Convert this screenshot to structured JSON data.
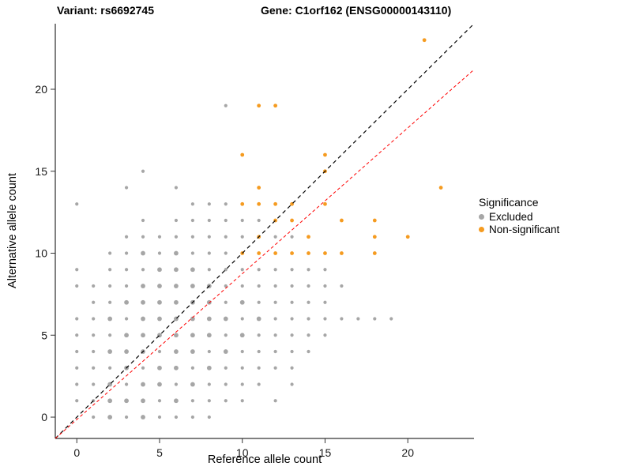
{
  "chart_data": {
    "type": "scatter",
    "title_variant": "Variant: rs6692745",
    "title_gene": "Gene: C1orf162 (ENSG00000143110)",
    "xlabel": "Reference allele count",
    "ylabel": "Alternative allele count",
    "x_ticks": [
      0,
      5,
      10,
      15,
      20
    ],
    "y_ticks": [
      0,
      5,
      10,
      15,
      20
    ],
    "xlim": [
      -1.3,
      24
    ],
    "ylim": [
      -1.3,
      24
    ],
    "grid": false,
    "legend": {
      "title": "Significance",
      "position": "right",
      "items": [
        {
          "label": "Excluded",
          "color": "#A6A6A6"
        },
        {
          "label": "Non-significant",
          "color": "#F59B20"
        }
      ]
    },
    "lines": [
      {
        "name": "identity-line",
        "color": "#000000",
        "dash": "5 4",
        "width": 1.2,
        "from": [
          -1.3,
          -1.3
        ],
        "to": [
          24,
          24
        ]
      },
      {
        "name": "ratio-line",
        "color": "#FF0000",
        "dash": "4 3",
        "width": 1,
        "from": [
          -1.3,
          -1.3
        ],
        "to": [
          24,
          21.2
        ]
      }
    ],
    "series": [
      {
        "name": "Excluded",
        "color": "#A6A6A6",
        "radius": 2.1,
        "points": [
          [
            1,
            0
          ],
          [
            2,
            0,
            2.9
          ],
          [
            3,
            0
          ],
          [
            4,
            0,
            2.9
          ],
          [
            5,
            0
          ],
          [
            6,
            0
          ],
          [
            7,
            0
          ],
          [
            8,
            0
          ],
          [
            0,
            1
          ],
          [
            1,
            1
          ],
          [
            2,
            1,
            2.9
          ],
          [
            3,
            1,
            2.9
          ],
          [
            4,
            1,
            2.9
          ],
          [
            5,
            1
          ],
          [
            6,
            1,
            2.9
          ],
          [
            7,
            1
          ],
          [
            8,
            1
          ],
          [
            9,
            1
          ],
          [
            10,
            1
          ],
          [
            12,
            1
          ],
          [
            0,
            2
          ],
          [
            1,
            2
          ],
          [
            2,
            2,
            2.9
          ],
          [
            3,
            2
          ],
          [
            4,
            2,
            2.9
          ],
          [
            5,
            2,
            2.9
          ],
          [
            6,
            2
          ],
          [
            7,
            2,
            2.9
          ],
          [
            8,
            2
          ],
          [
            9,
            2
          ],
          [
            10,
            2
          ],
          [
            11,
            2
          ],
          [
            13,
            2
          ],
          [
            0,
            3
          ],
          [
            1,
            3
          ],
          [
            2,
            3
          ],
          [
            3,
            3,
            2.9
          ],
          [
            4,
            3
          ],
          [
            5,
            3,
            2.9
          ],
          [
            6,
            3,
            2.9
          ],
          [
            7,
            3
          ],
          [
            8,
            3,
            2.9
          ],
          [
            9,
            3
          ],
          [
            10,
            3
          ],
          [
            11,
            3
          ],
          [
            12,
            3
          ],
          [
            13,
            3
          ],
          [
            0,
            4
          ],
          [
            1,
            4
          ],
          [
            2,
            4,
            2.9
          ],
          [
            3,
            4,
            2.9
          ],
          [
            4,
            4,
            2.9
          ],
          [
            5,
            4
          ],
          [
            6,
            4,
            2.9
          ],
          [
            7,
            4,
            2.9
          ],
          [
            8,
            4
          ],
          [
            9,
            4,
            2.9
          ],
          [
            10,
            4
          ],
          [
            11,
            4
          ],
          [
            12,
            4
          ],
          [
            13,
            4
          ],
          [
            14,
            4
          ],
          [
            0,
            5
          ],
          [
            1,
            5
          ],
          [
            2,
            5
          ],
          [
            3,
            5,
            2.9
          ],
          [
            4,
            5,
            2.9
          ],
          [
            5,
            5,
            2.9
          ],
          [
            6,
            5,
            2.9
          ],
          [
            7,
            5,
            2.9
          ],
          [
            8,
            5,
            2.9
          ],
          [
            9,
            5
          ],
          [
            10,
            5,
            2.9
          ],
          [
            11,
            5
          ],
          [
            12,
            5
          ],
          [
            13,
            5
          ],
          [
            14,
            5
          ],
          [
            15,
            5
          ],
          [
            0,
            6
          ],
          [
            1,
            6
          ],
          [
            2,
            6,
            2.9
          ],
          [
            3,
            6
          ],
          [
            4,
            6,
            2.9
          ],
          [
            5,
            6,
            2.9
          ],
          [
            6,
            6,
            2.9
          ],
          [
            7,
            6,
            2.9
          ],
          [
            8,
            6,
            2.9
          ],
          [
            9,
            6,
            2.9
          ],
          [
            10,
            6
          ],
          [
            11,
            6,
            2.9
          ],
          [
            12,
            6
          ],
          [
            13,
            6
          ],
          [
            14,
            6
          ],
          [
            15,
            6
          ],
          [
            16,
            6
          ],
          [
            17,
            6
          ],
          [
            18,
            6
          ],
          [
            19,
            6
          ],
          [
            1,
            7
          ],
          [
            2,
            7
          ],
          [
            3,
            7,
            2.9
          ],
          [
            4,
            7,
            2.9
          ],
          [
            5,
            7,
            2.9
          ],
          [
            6,
            7,
            2.9
          ],
          [
            7,
            7,
            2.9
          ],
          [
            8,
            7,
            2.9
          ],
          [
            9,
            7
          ],
          [
            10,
            7,
            2.9
          ],
          [
            11,
            7
          ],
          [
            12,
            7
          ],
          [
            13,
            7
          ],
          [
            14,
            7
          ],
          [
            15,
            7
          ],
          [
            0,
            8
          ],
          [
            1,
            8
          ],
          [
            2,
            8
          ],
          [
            3,
            8
          ],
          [
            4,
            8,
            2.9
          ],
          [
            5,
            8,
            2.9
          ],
          [
            6,
            8,
            2.9
          ],
          [
            7,
            8,
            2.9
          ],
          [
            8,
            8,
            2.9
          ],
          [
            9,
            8
          ],
          [
            10,
            8
          ],
          [
            11,
            8
          ],
          [
            12,
            8
          ],
          [
            13,
            8
          ],
          [
            14,
            8
          ],
          [
            15,
            8
          ],
          [
            16,
            8
          ],
          [
            0,
            9
          ],
          [
            2,
            9
          ],
          [
            3,
            9
          ],
          [
            4,
            9
          ],
          [
            5,
            9,
            2.9
          ],
          [
            6,
            9,
            2.9
          ],
          [
            7,
            9,
            2.9
          ],
          [
            8,
            9
          ],
          [
            9,
            9
          ],
          [
            10,
            9
          ],
          [
            11,
            9
          ],
          [
            12,
            9
          ],
          [
            13,
            9
          ],
          [
            14,
            9
          ],
          [
            15,
            9
          ],
          [
            2,
            10
          ],
          [
            3,
            10
          ],
          [
            4,
            10,
            2.9
          ],
          [
            5,
            10
          ],
          [
            6,
            10,
            2.9
          ],
          [
            7,
            10
          ],
          [
            8,
            10
          ],
          [
            9,
            10
          ],
          [
            3,
            11
          ],
          [
            4,
            11
          ],
          [
            5,
            11
          ],
          [
            6,
            11
          ],
          [
            7,
            11
          ],
          [
            8,
            11
          ],
          [
            9,
            11
          ],
          [
            10,
            11
          ],
          [
            12,
            11
          ],
          [
            13,
            11
          ],
          [
            4,
            12
          ],
          [
            6,
            12
          ],
          [
            7,
            12
          ],
          [
            8,
            12
          ],
          [
            9,
            12
          ],
          [
            10,
            12
          ],
          [
            11,
            12
          ],
          [
            0,
            13
          ],
          [
            7,
            13
          ],
          [
            8,
            13
          ],
          [
            9,
            13
          ],
          [
            3,
            14
          ],
          [
            6,
            14
          ],
          [
            4,
            15
          ],
          [
            9,
            19
          ]
        ]
      },
      {
        "name": "Non-significant",
        "color": "#F59B20",
        "radius": 2.4,
        "points": [
          [
            21,
            23
          ],
          [
            11,
            19
          ],
          [
            12,
            19
          ],
          [
            10,
            16
          ],
          [
            15,
            16
          ],
          [
            15,
            15
          ],
          [
            11,
            14
          ],
          [
            22,
            14
          ],
          [
            10,
            13
          ],
          [
            11,
            13
          ],
          [
            12,
            13
          ],
          [
            13,
            13
          ],
          [
            15,
            13
          ],
          [
            12,
            12
          ],
          [
            13,
            12
          ],
          [
            16,
            12
          ],
          [
            18,
            12
          ],
          [
            11,
            11
          ],
          [
            14,
            11
          ],
          [
            18,
            11
          ],
          [
            20,
            11
          ],
          [
            10,
            10
          ],
          [
            11,
            10
          ],
          [
            12,
            10
          ],
          [
            13,
            10
          ],
          [
            14,
            10
          ],
          [
            15,
            10
          ],
          [
            16,
            10
          ],
          [
            18,
            10
          ]
        ]
      }
    ]
  }
}
